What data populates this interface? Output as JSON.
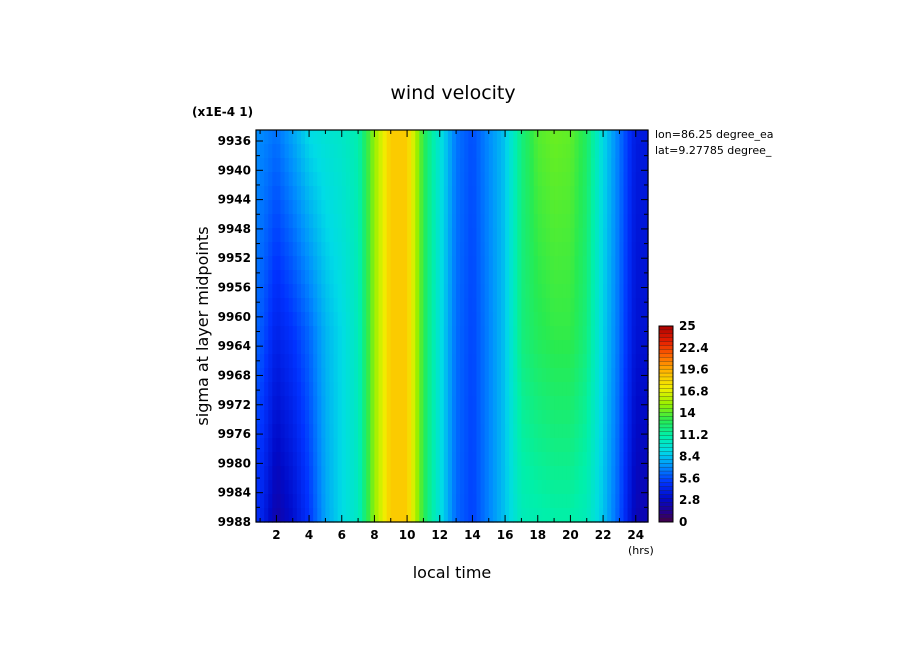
{
  "chart_data": {
    "type": "heatmap",
    "title": "wind velocity",
    "scale_note": "(x1E-4 1)",
    "xlabel": "local time",
    "xunit": "(hrs)",
    "ylabel": "sigma at layer midpoints",
    "x_ticks": [
      2,
      4,
      6,
      8,
      10,
      12,
      14,
      16,
      18,
      20,
      22,
      24
    ],
    "y_ticks": [
      9936,
      9940,
      9944,
      9948,
      9952,
      9956,
      9960,
      9964,
      9968,
      9972,
      9976,
      9980,
      9984,
      9988
    ],
    "xlim": [
      0.75,
      24.75
    ],
    "ylim": [
      9988,
      9934.5
    ],
    "annotations": [
      "lon=86.25 degree_ea",
      "lat=9.27785 degree_"
    ],
    "colorbar": {
      "min": 0,
      "max": 25,
      "ticks": [
        "25",
        "22.4",
        "19.6",
        "16.8",
        "14",
        "11.2",
        "8.4",
        "5.6",
        "2.8",
        "0"
      ]
    },
    "hours": [
      1,
      2,
      3,
      4,
      5,
      6,
      7,
      8,
      9,
      10,
      11,
      12,
      13,
      14,
      15,
      16,
      17,
      18,
      19,
      20,
      21,
      22,
      23,
      24
    ],
    "sigma_levels": [
      9935,
      9962,
      9988
    ],
    "values": [
      [
        7.0,
        6.4,
        7.6,
        9.0,
        9.6,
        10.0,
        10.8,
        15.0,
        18.5,
        18.5,
        13.0,
        9.6,
        6.5,
        5.6,
        7.0,
        8.4,
        12.0,
        13.8,
        14.2,
        14.0,
        12.6,
        9.0,
        6.5,
        3.8
      ],
      [
        6.0,
        4.2,
        5.0,
        6.2,
        8.0,
        9.0,
        10.4,
        15.0,
        18.5,
        18.5,
        13.0,
        9.4,
        6.3,
        5.4,
        6.8,
        8.4,
        12.0,
        12.8,
        13.2,
        13.2,
        12.0,
        8.8,
        6.3,
        3.4
      ],
      [
        4.5,
        2.0,
        3.2,
        5.0,
        7.6,
        9.0,
        10.2,
        15.0,
        18.5,
        18.5,
        13.0,
        9.4,
        6.2,
        5.3,
        6.8,
        8.4,
        10.5,
        10.8,
        11.0,
        11.0,
        10.5,
        8.4,
        5.8,
        2.4
      ]
    ]
  }
}
